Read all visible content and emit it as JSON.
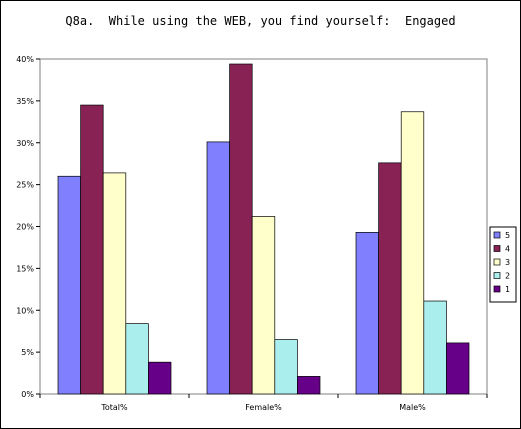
{
  "chart_data": {
    "type": "bar",
    "title": "Q8a.  While using the WEB, you find yourself:  Engaged",
    "categories": [
      "Total%",
      "Female%",
      "Male%"
    ],
    "y_ticks": [
      "0%",
      "5%",
      "10%",
      "15%",
      "20%",
      "25%",
      "30%",
      "35%",
      "40%"
    ],
    "ylim": [
      0,
      40
    ],
    "grid": false,
    "legend_position": "right",
    "series": [
      {
        "name": "5",
        "color": "#8080FF",
        "values": [
          26.0,
          30.1,
          19.3
        ]
      },
      {
        "name": "4",
        "color": "#882255",
        "values": [
          34.5,
          39.4,
          27.6
        ]
      },
      {
        "name": "3",
        "color": "#FFFFCC",
        "values": [
          26.4,
          21.2,
          33.7
        ]
      },
      {
        "name": "2",
        "color": "#AAEEEE",
        "values": [
          8.4,
          6.5,
          11.1
        ]
      },
      {
        "name": "1",
        "color": "#660088",
        "values": [
          3.8,
          2.1,
          6.1
        ]
      }
    ]
  }
}
